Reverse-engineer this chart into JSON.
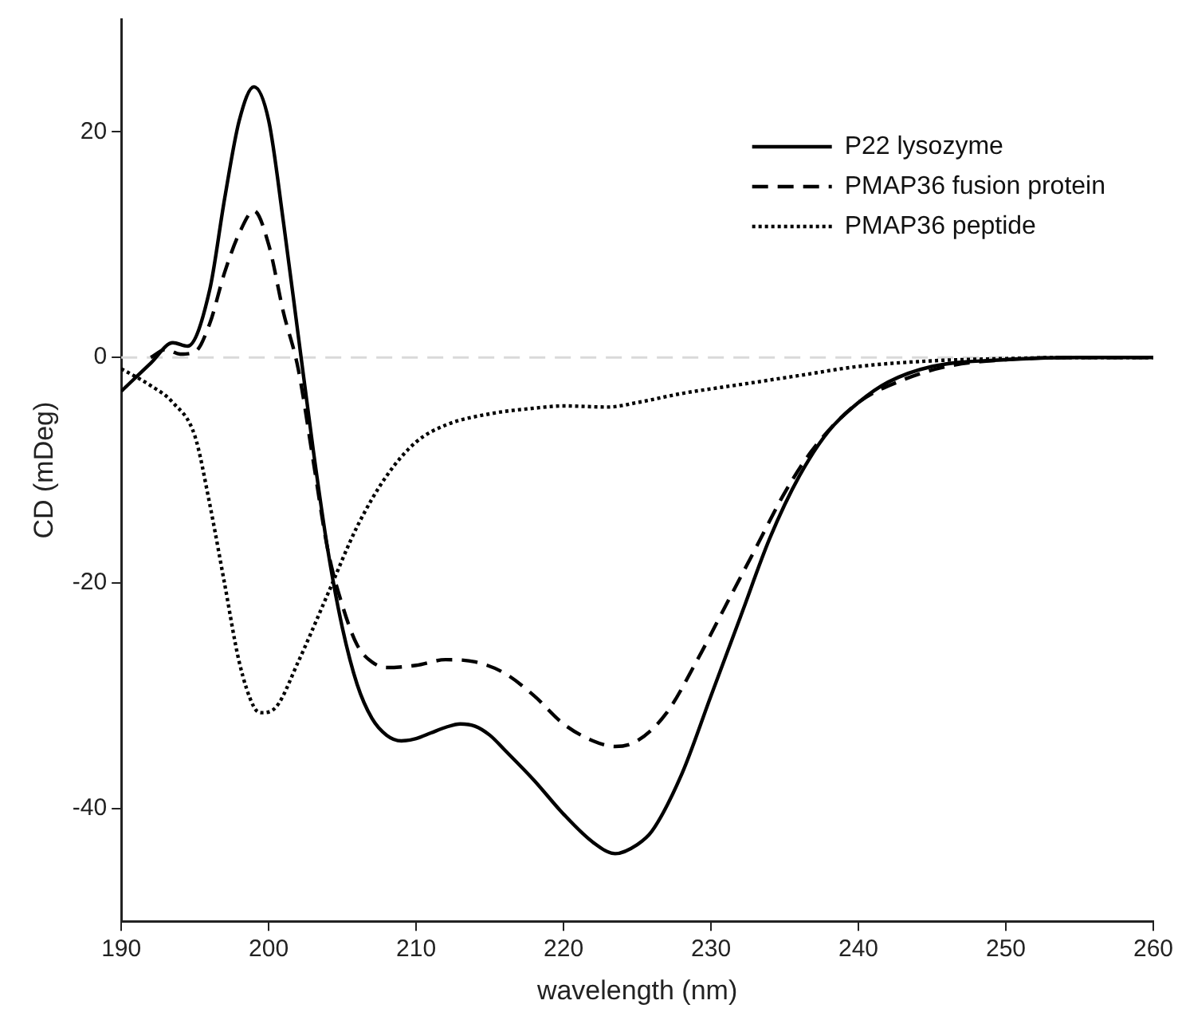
{
  "chart_data": {
    "type": "line",
    "xlabel": "wavelength (nm)",
    "ylabel": "CD (mDeg)",
    "xlim": [
      190,
      260
    ],
    "xticks": [
      190,
      200,
      210,
      220,
      230,
      240,
      250,
      260
    ],
    "ylim": [
      -50,
      30
    ],
    "yticks": [
      -40,
      -20,
      0,
      20
    ],
    "grid": false,
    "legend": "top right",
    "marker": "none",
    "ref_lines": [
      {
        "axis": "y",
        "value": 0,
        "color": "#d9d9d9",
        "line_style": "dashed"
      }
    ],
    "series": [
      {
        "name": "P22 lysozyme",
        "color": "#000000",
        "line_style": "solid",
        "x": [
          190,
          192,
          193.5,
          194.5,
          196,
          197,
          198,
          199,
          200,
          201,
          202,
          203,
          204,
          205,
          206,
          207,
          208,
          209,
          210,
          211,
          212,
          213,
          214,
          215,
          216,
          218,
          220,
          222,
          223.5,
          225,
          226,
          228,
          230,
          232,
          234,
          236,
          238,
          240,
          242,
          245,
          250,
          255,
          260
        ],
        "values": [
          -3,
          -0.5,
          1.3,
          1,
          6,
          14,
          21,
          24,
          21,
          12,
          2,
          -8,
          -17,
          -24,
          -29,
          -32,
          -33.5,
          -34,
          -33.8,
          -33.3,
          -32.8,
          -32.5,
          -32.7,
          -33.5,
          -34.8,
          -37.5,
          -40.5,
          -43,
          -44,
          -43.2,
          -42,
          -37,
          -30,
          -23,
          -16,
          -10.5,
          -6.5,
          -4,
          -2.2,
          -0.8,
          -0.2,
          0,
          0
        ]
      },
      {
        "name": "PMAP36 fusion protein",
        "color": "#000000",
        "line_style": "dashed",
        "x": [
          192,
          193,
          194,
          195,
          196,
          197,
          198,
          199,
          200,
          201,
          202,
          203,
          204,
          205,
          206,
          207,
          208,
          210,
          212,
          214,
          216,
          218,
          220,
          222,
          223.5,
          225,
          227,
          229,
          231,
          233,
          235,
          237,
          240,
          243,
          246,
          250,
          255,
          260
        ],
        "values": [
          0,
          0.7,
          0.3,
          0.5,
          3,
          7.5,
          11,
          13,
          10,
          4,
          -1,
          -9,
          -17,
          -22,
          -25.5,
          -27,
          -27.5,
          -27.3,
          -26.8,
          -27,
          -28,
          -30,
          -32.5,
          -34,
          -34.5,
          -34,
          -31.5,
          -27,
          -22,
          -17,
          -12,
          -8,
          -4,
          -2,
          -0.8,
          -0.2,
          0,
          0
        ]
      },
      {
        "name": "PMAP36 peptide",
        "color": "#000000",
        "line_style": "dotted",
        "x": [
          190,
          192,
          193.5,
          195,
          196,
          197,
          198,
          199,
          199.5,
          200.5,
          202,
          204,
          206,
          208,
          210,
          212,
          215,
          218,
          220,
          223,
          225,
          228,
          232,
          236,
          240,
          245,
          250,
          255,
          260
        ],
        "values": [
          -1,
          -2.5,
          -4,
          -7,
          -13,
          -20,
          -27,
          -31,
          -31.5,
          -31,
          -27,
          -21,
          -15,
          -10.5,
          -7.5,
          -6,
          -5,
          -4.5,
          -4.3,
          -4.4,
          -4,
          -3.2,
          -2.4,
          -1.6,
          -0.8,
          -0.3,
          -0.1,
          0,
          0
        ]
      }
    ]
  }
}
